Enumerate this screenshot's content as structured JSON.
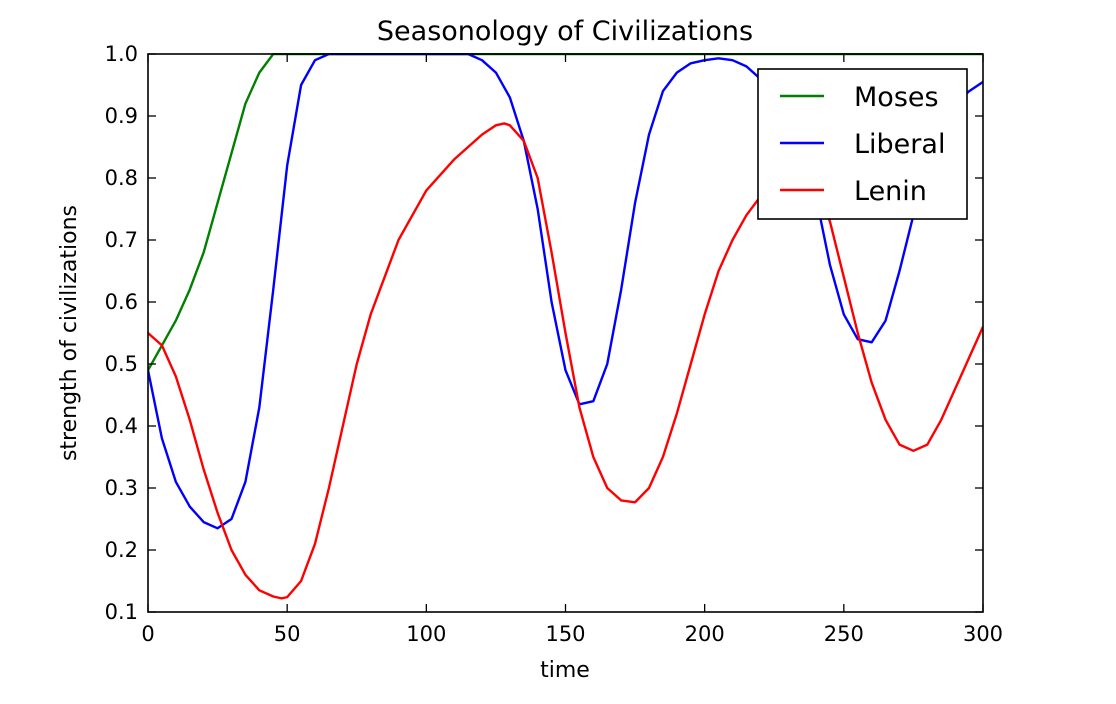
{
  "chart_data": {
    "type": "line",
    "title": "Seasonology of Civilizations",
    "xlabel": "time",
    "ylabel": "strength of civilizations",
    "xlim": [
      0,
      300
    ],
    "ylim": [
      0.1,
      1.0
    ],
    "xticks": [
      0,
      50,
      100,
      150,
      200,
      250,
      300
    ],
    "yticks": [
      0.1,
      0.2,
      0.3,
      0.4,
      0.5,
      0.6,
      0.7,
      0.8,
      0.9,
      1.0
    ],
    "grid": false,
    "legend_position": "top-right",
    "series": [
      {
        "name": "Moses",
        "color": "#008000",
        "x": [
          0,
          5,
          10,
          15,
          20,
          25,
          30,
          35,
          40,
          45,
          50,
          55,
          60,
          70,
          80,
          90,
          100,
          110,
          120,
          130,
          140,
          150,
          160,
          170,
          180,
          190,
          200,
          210,
          220,
          230,
          240,
          250,
          260,
          270,
          280,
          290,
          300
        ],
        "y": [
          0.49,
          0.53,
          0.57,
          0.62,
          0.68,
          0.76,
          0.84,
          0.92,
          0.97,
          1.0,
          1.0,
          1.0,
          1.0,
          1.0,
          1.0,
          1.0,
          1.0,
          1.0,
          1.0,
          1.0,
          1.0,
          1.0,
          1.0,
          1.0,
          1.0,
          1.0,
          1.0,
          1.0,
          1.0,
          1.0,
          1.0,
          1.0,
          1.0,
          1.0,
          1.0,
          1.0,
          1.0
        ]
      },
      {
        "name": "Liberal",
        "color": "#0000ff",
        "x": [
          0,
          5,
          10,
          15,
          20,
          25,
          30,
          35,
          40,
          45,
          50,
          55,
          60,
          65,
          70,
          80,
          90,
          100,
          110,
          115,
          120,
          125,
          130,
          135,
          140,
          145,
          150,
          155,
          160,
          165,
          170,
          175,
          180,
          185,
          190,
          195,
          200,
          205,
          210,
          215,
          220,
          225,
          230,
          235,
          240,
          245,
          250,
          255,
          260,
          265,
          270,
          275,
          280,
          285,
          290,
          295,
          300
        ],
        "y": [
          0.49,
          0.38,
          0.31,
          0.27,
          0.245,
          0.235,
          0.25,
          0.31,
          0.43,
          0.62,
          0.82,
          0.95,
          0.99,
          1.0,
          1.0,
          1.0,
          1.0,
          1.0,
          1.0,
          1.0,
          0.99,
          0.97,
          0.93,
          0.86,
          0.75,
          0.6,
          0.49,
          0.435,
          0.44,
          0.5,
          0.62,
          0.76,
          0.87,
          0.94,
          0.97,
          0.985,
          0.99,
          0.993,
          0.99,
          0.98,
          0.96,
          0.93,
          0.9,
          0.85,
          0.77,
          0.66,
          0.58,
          0.54,
          0.535,
          0.57,
          0.65,
          0.74,
          0.82,
          0.88,
          0.92,
          0.94,
          0.955
        ]
      },
      {
        "name": "Lenin",
        "color": "#ff0000",
        "x": [
          0,
          5,
          10,
          15,
          20,
          25,
          30,
          35,
          40,
          45,
          48,
          50,
          55,
          60,
          65,
          70,
          75,
          80,
          90,
          100,
          110,
          120,
          125,
          128,
          130,
          135,
          140,
          145,
          150,
          155,
          160,
          165,
          170,
          175,
          180,
          185,
          190,
          195,
          200,
          205,
          210,
          215,
          220,
          225,
          230,
          235,
          240,
          245,
          250,
          255,
          260,
          265,
          270,
          275,
          280,
          285,
          290,
          295,
          300
        ],
        "y": [
          0.55,
          0.53,
          0.48,
          0.41,
          0.33,
          0.26,
          0.2,
          0.16,
          0.135,
          0.125,
          0.122,
          0.124,
          0.15,
          0.21,
          0.3,
          0.4,
          0.5,
          0.58,
          0.7,
          0.78,
          0.83,
          0.87,
          0.885,
          0.888,
          0.885,
          0.86,
          0.8,
          0.68,
          0.55,
          0.43,
          0.35,
          0.3,
          0.28,
          0.277,
          0.3,
          0.35,
          0.42,
          0.5,
          0.58,
          0.65,
          0.7,
          0.74,
          0.77,
          0.79,
          0.8,
          0.8,
          0.78,
          0.73,
          0.64,
          0.55,
          0.47,
          0.41,
          0.37,
          0.36,
          0.37,
          0.41,
          0.46,
          0.51,
          0.56
        ]
      }
    ]
  }
}
